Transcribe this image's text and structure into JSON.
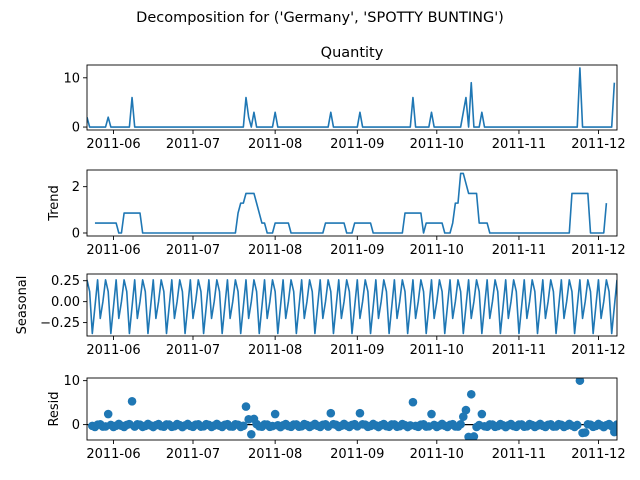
{
  "figure": {
    "suptitle": "Decomposition for ('Germany', 'SPOTTY BUNTING')",
    "series_color": "#1f77b4"
  },
  "chart_data": [
    {
      "type": "line",
      "title": "Quantity",
      "ylabel": "",
      "x_range": [
        "2011-05-22",
        "2011-12-08"
      ],
      "ylim": [
        -0.6,
        12.6
      ],
      "yticks": [
        0,
        10
      ],
      "xtick_labels": [
        "2011-06",
        "2011-07",
        "2011-08",
        "2011-09",
        "2011-10",
        "2011-11",
        "2011-12"
      ],
      "points": [
        [
          "2011-05-22",
          2
        ],
        [
          "2011-05-23",
          0
        ],
        [
          "2011-05-29",
          0
        ],
        [
          "2011-05-30",
          2
        ],
        [
          "2011-05-31",
          0
        ],
        [
          "2011-06-07",
          0
        ],
        [
          "2011-06-08",
          6
        ],
        [
          "2011-06-09",
          0
        ],
        [
          "2011-07-20",
          0
        ],
        [
          "2011-07-21",
          6
        ],
        [
          "2011-07-22",
          2
        ],
        [
          "2011-07-23",
          0
        ],
        [
          "2011-07-24",
          3
        ],
        [
          "2011-07-25",
          0
        ],
        [
          "2011-07-31",
          0
        ],
        [
          "2011-08-01",
          3
        ],
        [
          "2011-08-02",
          0
        ],
        [
          "2011-08-21",
          0
        ],
        [
          "2011-08-22",
          3
        ],
        [
          "2011-08-23",
          0
        ],
        [
          "2011-09-01",
          0
        ],
        [
          "2011-09-02",
          3
        ],
        [
          "2011-09-03",
          0
        ],
        [
          "2011-09-21",
          0
        ],
        [
          "2011-09-22",
          6
        ],
        [
          "2011-09-23",
          0
        ],
        [
          "2011-09-28",
          0
        ],
        [
          "2011-09-29",
          3
        ],
        [
          "2011-09-30",
          0
        ],
        [
          "2011-10-10",
          0
        ],
        [
          "2011-10-11",
          3
        ],
        [
          "2011-10-12",
          6
        ],
        [
          "2011-10-13",
          0
        ],
        [
          "2011-10-14",
          9
        ],
        [
          "2011-10-15",
          0
        ],
        [
          "2011-10-17",
          0
        ],
        [
          "2011-10-18",
          3
        ],
        [
          "2011-10-19",
          0
        ],
        [
          "2011-11-23",
          0
        ],
        [
          "2011-11-24",
          12
        ],
        [
          "2011-11-25",
          0
        ],
        [
          "2011-12-06",
          0
        ],
        [
          "2011-12-07",
          9
        ]
      ]
    },
    {
      "type": "line",
      "title": "",
      "ylabel": "Trend",
      "x_range": [
        "2011-05-22",
        "2011-12-08"
      ],
      "ylim": [
        -0.13,
        2.72
      ],
      "yticks": [
        0,
        2
      ],
      "xtick_labels": [
        "2011-06",
        "2011-07",
        "2011-08",
        "2011-09",
        "2011-10",
        "2011-11",
        "2011-12"
      ],
      "points": [
        [
          "2011-05-25",
          0.43
        ],
        [
          "2011-06-02",
          0.43
        ],
        [
          "2011-06-03",
          0
        ],
        [
          "2011-06-04",
          0
        ],
        [
          "2011-06-05",
          0.86
        ],
        [
          "2011-06-11",
          0.86
        ],
        [
          "2011-06-12",
          0
        ],
        [
          "2011-07-17",
          0
        ],
        [
          "2011-07-18",
          0.86
        ],
        [
          "2011-07-19",
          1.29
        ],
        [
          "2011-07-20",
          1.29
        ],
        [
          "2011-07-21",
          1.71
        ],
        [
          "2011-07-24",
          1.71
        ],
        [
          "2011-07-25",
          1.29
        ],
        [
          "2011-07-26",
          0.86
        ],
        [
          "2011-07-27",
          0.43
        ],
        [
          "2011-07-28",
          0.43
        ],
        [
          "2011-07-29",
          0
        ],
        [
          "2011-07-31",
          0
        ],
        [
          "2011-08-01",
          0.43
        ],
        [
          "2011-08-06",
          0.43
        ],
        [
          "2011-08-07",
          0
        ],
        [
          "2011-08-19",
          0
        ],
        [
          "2011-08-20",
          0.43
        ],
        [
          "2011-08-27",
          0.43
        ],
        [
          "2011-08-28",
          0
        ],
        [
          "2011-08-30",
          0
        ],
        [
          "2011-08-31",
          0.43
        ],
        [
          "2011-09-06",
          0.43
        ],
        [
          "2011-09-07",
          0
        ],
        [
          "2011-09-18",
          0
        ],
        [
          "2011-09-19",
          0.86
        ],
        [
          "2011-09-25",
          0.86
        ],
        [
          "2011-09-26",
          0
        ],
        [
          "2011-09-27",
          0.43
        ],
        [
          "2011-10-03",
          0.43
        ],
        [
          "2011-10-04",
          0
        ],
        [
          "2011-10-06",
          0
        ],
        [
          "2011-10-07",
          0.43
        ],
        [
          "2011-10-08",
          1.29
        ],
        [
          "2011-10-09",
          1.29
        ],
        [
          "2011-10-10",
          2.57
        ],
        [
          "2011-10-11",
          2.57
        ],
        [
          "2011-10-12",
          2.14
        ],
        [
          "2011-10-13",
          1.71
        ],
        [
          "2011-10-16",
          1.71
        ],
        [
          "2011-10-17",
          0.43
        ],
        [
          "2011-10-20",
          0.43
        ],
        [
          "2011-10-21",
          0
        ],
        [
          "2011-11-20",
          0
        ],
        [
          "2011-11-21",
          1.71
        ],
        [
          "2011-11-27",
          1.71
        ],
        [
          "2011-11-28",
          0
        ],
        [
          "2011-12-03",
          0
        ],
        [
          "2011-12-04",
          1.29
        ]
      ]
    },
    {
      "type": "line",
      "title": "",
      "ylabel": "Seasonal",
      "x_range": [
        "2011-05-22",
        "2011-12-08"
      ],
      "ylim": [
        -0.41,
        0.33
      ],
      "yticks": [
        0.25,
        0.0,
        -0.25
      ],
      "ytick_labels": [
        "0.25",
        "0.00",
        "−0.25"
      ],
      "xtick_labels": [
        "2011-06",
        "2011-07",
        "2011-08",
        "2011-09",
        "2011-10",
        "2011-11",
        "2011-12"
      ],
      "period_days": 7,
      "pattern": [
        0.26,
        0.12,
        -0.38,
        -0.06,
        0.26,
        -0.2,
        0.0
      ]
    },
    {
      "type": "scatter",
      "title": "",
      "ylabel": "Resid",
      "x_range": [
        "2011-05-22",
        "2011-12-08"
      ],
      "ylim": [
        -3.5,
        10.6
      ],
      "yticks": [
        0,
        10
      ],
      "xtick_labels": [
        "2011-06",
        "2011-07",
        "2011-08",
        "2011-09",
        "2011-10",
        "2011-11",
        "2011-12"
      ],
      "zero_line": true,
      "points": [
        [
          "2011-05-30",
          2.4
        ],
        [
          "2011-06-08",
          5.3
        ],
        [
          "2011-07-21",
          4.1
        ],
        [
          "2011-07-22",
          1.2
        ],
        [
          "2011-07-23",
          -2.2
        ],
        [
          "2011-07-24",
          1.3
        ],
        [
          "2011-08-01",
          2.4
        ],
        [
          "2011-08-22",
          2.6
        ],
        [
          "2011-09-02",
          2.6
        ],
        [
          "2011-09-22",
          5.1
        ],
        [
          "2011-09-29",
          2.4
        ],
        [
          "2011-10-11",
          1.8
        ],
        [
          "2011-10-12",
          3.3
        ],
        [
          "2011-10-13",
          -2.8
        ],
        [
          "2011-10-14",
          6.9
        ],
        [
          "2011-10-15",
          -2.7
        ],
        [
          "2011-10-18",
          2.4
        ],
        [
          "2011-11-24",
          10.0
        ],
        [
          "2011-11-25",
          -1.9
        ],
        [
          "2011-11-26",
          -1.8
        ],
        [
          "2011-12-07",
          -1.7
        ]
      ],
      "baseline_noise": 0.35
    }
  ]
}
